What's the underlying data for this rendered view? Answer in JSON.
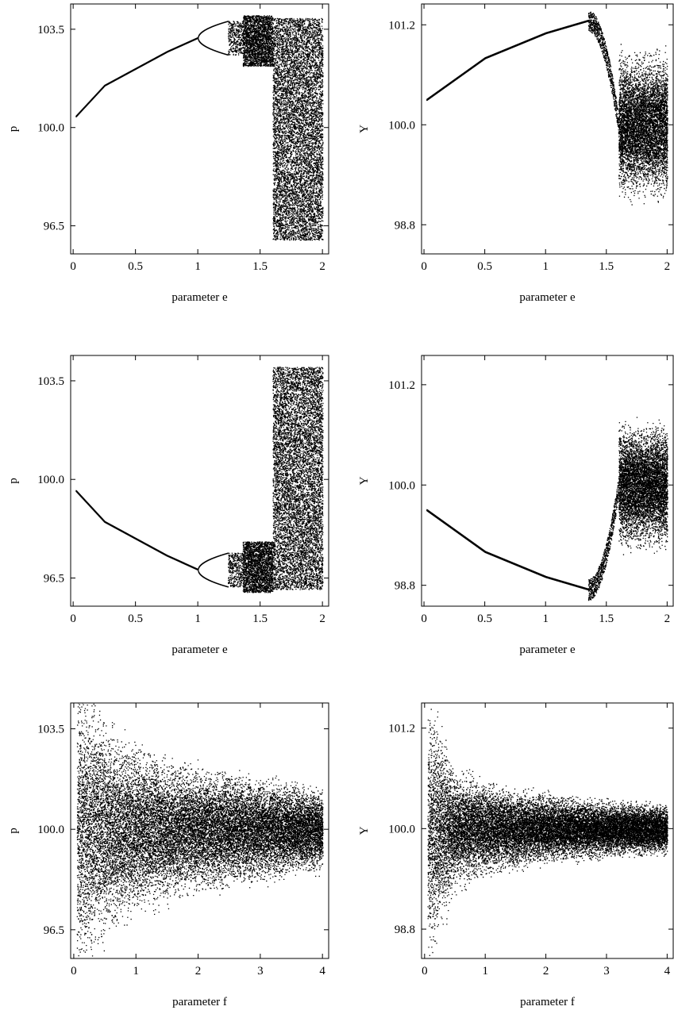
{
  "chart_data": [
    {
      "id": "p1",
      "type": "scatter",
      "xlabel": "parameter e",
      "ylabel": "p",
      "xlim": [
        -0.02,
        2.05
      ],
      "ylim": [
        95.5,
        104.4
      ],
      "xticks": [
        0,
        0.5,
        1,
        1.5,
        2
      ],
      "xtick_labels": [
        "0",
        "0.5",
        "1",
        "1.5",
        "2"
      ],
      "yticks": [
        96.5,
        100.0,
        103.5
      ],
      "ytick_labels": [
        "96.5",
        "100.0",
        "103.5"
      ],
      "series": [
        {
          "kind": "bifurcation",
          "color": "#000000",
          "x_start": 0.02,
          "x_end": 2.0,
          "branch_at_x": [
            [
              0.02,
              100.4
            ],
            [
              0.25,
              101.5
            ],
            [
              0.5,
              102.1
            ],
            [
              0.75,
              102.7
            ],
            [
              1.0,
              103.2
            ]
          ],
          "period2_x": [
            1.0,
            1.24
          ],
          "period2_range": [
            102.6,
            103.8
          ],
          "period4_x": [
            1.24,
            1.36
          ],
          "chaos_band_x": [
            1.36,
            1.6
          ],
          "chaos_band_range": [
            102.2,
            104.0
          ],
          "full_chaos_x": [
            1.6,
            2.0
          ],
          "full_chaos_range": [
            96.0,
            103.9
          ]
        }
      ]
    },
    {
      "id": "p2",
      "type": "scatter",
      "xlabel": "parameter e",
      "ylabel": "Y",
      "xlim": [
        -0.02,
        2.05
      ],
      "ylim": [
        98.45,
        101.45
      ],
      "xticks": [
        0,
        0.5,
        1,
        1.5,
        2
      ],
      "xtick_labels": [
        "0",
        "0.5",
        "1",
        "1.5",
        "2"
      ],
      "yticks": [
        98.8,
        100.0,
        101.2
      ],
      "ytick_labels": [
        "98.8",
        "100.0",
        "101.2"
      ],
      "series": [
        {
          "kind": "output",
          "color": "#000000",
          "x_start": 0.02,
          "x_end": 2.0,
          "branch_at_x": [
            [
              0.02,
              100.3
            ],
            [
              0.5,
              100.8
            ],
            [
              1.0,
              101.1
            ],
            [
              1.35,
              101.25
            ]
          ],
          "transition_x": [
            1.35,
            1.62
          ],
          "chaos_x": [
            1.6,
            2.0
          ],
          "chaos_range": [
            99.2,
            100.6
          ]
        }
      ]
    },
    {
      "id": "p3",
      "type": "scatter",
      "xlabel": "parameter e",
      "ylabel": "p",
      "xlim": [
        -0.02,
        2.05
      ],
      "ylim": [
        95.5,
        104.4
      ],
      "xticks": [
        0,
        0.5,
        1,
        1.5,
        2
      ],
      "xtick_labels": [
        "0",
        "0.5",
        "1",
        "1.5",
        "2"
      ],
      "yticks": [
        96.5,
        100.0,
        103.5
      ],
      "ytick_labels": [
        "96.5",
        "100.0",
        "103.5"
      ],
      "series": [
        {
          "kind": "bifurcation",
          "color": "#000000",
          "x_start": 0.02,
          "x_end": 2.0,
          "branch_at_x": [
            [
              0.02,
              99.6
            ],
            [
              0.25,
              98.5
            ],
            [
              0.5,
              97.9
            ],
            [
              0.75,
              97.3
            ],
            [
              1.0,
              96.8
            ]
          ],
          "period2_x": [
            1.0,
            1.24
          ],
          "period2_range": [
            96.2,
            97.4
          ],
          "period4_x": [
            1.24,
            1.36
          ],
          "chaos_band_x": [
            1.36,
            1.6
          ],
          "chaos_band_range": [
            96.0,
            97.8
          ],
          "full_chaos_x": [
            1.6,
            2.0
          ],
          "full_chaos_range": [
            96.1,
            104.0
          ]
        }
      ]
    },
    {
      "id": "p4",
      "type": "scatter",
      "xlabel": "parameter e",
      "ylabel": "Y",
      "xlim": [
        -0.02,
        2.05
      ],
      "ylim": [
        98.55,
        101.55
      ],
      "xticks": [
        0,
        0.5,
        1,
        1.5,
        2
      ],
      "xtick_labels": [
        "0",
        "0.5",
        "1",
        "1.5",
        "2"
      ],
      "yticks": [
        98.8,
        100.0,
        101.2
      ],
      "ytick_labels": [
        "98.8",
        "100.0",
        "101.2"
      ],
      "series": [
        {
          "kind": "output",
          "color": "#000000",
          "x_start": 0.02,
          "x_end": 2.0,
          "branch_at_x": [
            [
              0.02,
              99.7
            ],
            [
              0.5,
              99.2
            ],
            [
              1.0,
              98.9
            ],
            [
              1.35,
              98.75
            ]
          ],
          "transition_x": [
            1.35,
            1.62
          ],
          "chaos_x": [
            1.6,
            2.0
          ],
          "chaos_range": [
            99.4,
            100.6
          ]
        }
      ]
    },
    {
      "id": "p5",
      "type": "scatter",
      "xlabel": "parameter f",
      "ylabel": "p",
      "xlim": [
        -0.05,
        4.1
      ],
      "ylim": [
        95.5,
        104.4
      ],
      "xticks": [
        0,
        1,
        2,
        3,
        4
      ],
      "xtick_labels": [
        "0",
        "1",
        "2",
        "3",
        "4"
      ],
      "yticks": [
        96.5,
        100.0,
        103.5
      ],
      "ytick_labels": [
        "96.5",
        "100.0",
        "103.5"
      ],
      "series": [
        {
          "kind": "funnel",
          "color": "#000000",
          "x_start": 0.05,
          "x_end": 4.0,
          "center": 100.0,
          "spread_at_x": [
            [
              0.1,
              4.4
            ],
            [
              0.5,
              3.2
            ],
            [
              1.0,
              2.4
            ],
            [
              2.0,
              1.8
            ],
            [
              3.0,
              1.5
            ],
            [
              4.0,
              1.2
            ]
          ]
        }
      ]
    },
    {
      "id": "p6",
      "type": "scatter",
      "xlabel": "parameter f",
      "ylabel": "Y",
      "xlim": [
        -0.05,
        4.1
      ],
      "ylim": [
        98.45,
        101.5
      ],
      "xticks": [
        0,
        1,
        2,
        3,
        4
      ],
      "xtick_labels": [
        "0",
        "1",
        "2",
        "3",
        "4"
      ],
      "yticks": [
        98.8,
        100.0,
        101.2
      ],
      "ytick_labels": [
        "98.8",
        "100.0",
        "101.2"
      ],
      "series": [
        {
          "kind": "funnel",
          "color": "#000000",
          "x_start": 0.05,
          "x_end": 4.0,
          "center": 100.0,
          "spread_at_x": [
            [
              0.1,
              1.3
            ],
            [
              0.5,
              0.6
            ],
            [
              1.0,
              0.45
            ],
            [
              2.0,
              0.35
            ],
            [
              3.0,
              0.28
            ],
            [
              4.0,
              0.25
            ]
          ]
        }
      ]
    }
  ]
}
